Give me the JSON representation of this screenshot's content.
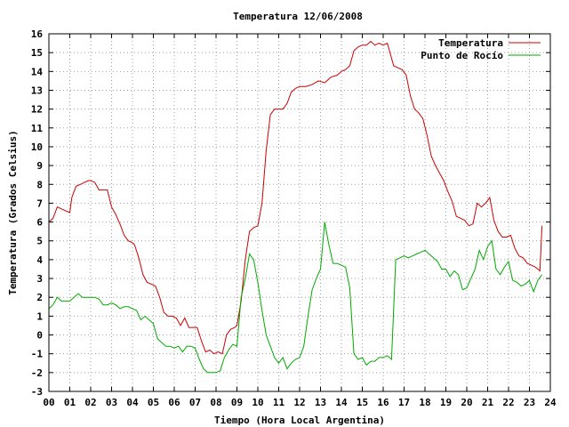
{
  "chart_data": {
    "type": "line",
    "title": "Temperatura 12/06/2008",
    "xlabel": "Tiempo (Hora Local Argentina)",
    "ylabel": "Temperatura (Grados Celsius)",
    "xlim": [
      0,
      24
    ],
    "ylim": [
      -3,
      16
    ],
    "x_ticks": [
      "00",
      "01",
      "02",
      "03",
      "04",
      "05",
      "06",
      "07",
      "08",
      "09",
      "10",
      "11",
      "12",
      "13",
      "14",
      "15",
      "16",
      "17",
      "18",
      "19",
      "20",
      "21",
      "22",
      "23",
      "24"
    ],
    "y_ticks": [
      -3,
      -2,
      -1,
      0,
      1,
      2,
      3,
      4,
      5,
      6,
      7,
      8,
      9,
      10,
      11,
      12,
      13,
      14,
      15,
      16
    ],
    "grid": true,
    "legend_position": "top-right",
    "series": [
      {
        "name": "Temperatura",
        "color": "#cc0000",
        "x": [
          0,
          0.2,
          0.4,
          0.6,
          0.8,
          1.0,
          1.1,
          1.3,
          1.5,
          1.7,
          1.9,
          2.0,
          2.2,
          2.4,
          2.6,
          2.8,
          3.0,
          3.2,
          3.4,
          3.6,
          3.8,
          4.0,
          4.1,
          4.3,
          4.5,
          4.7,
          4.9,
          5.1,
          5.3,
          5.5,
          5.7,
          5.9,
          6.1,
          6.3,
          6.5,
          6.7,
          6.9,
          7.1,
          7.3,
          7.5,
          7.7,
          7.9,
          8.1,
          8.3,
          8.5,
          8.7,
          8.9,
          9.0,
          9.2,
          9.4,
          9.6,
          9.8,
          10.0,
          10.2,
          10.4,
          10.6,
          10.8,
          11.0,
          11.2,
          11.4,
          11.6,
          11.8,
          12.0,
          12.3,
          12.6,
          12.9,
          13.2,
          13.5,
          13.8,
          14.0,
          14.2,
          14.4,
          14.6,
          14.8,
          15.0,
          15.2,
          15.4,
          15.6,
          15.8,
          16.0,
          16.2,
          16.5,
          16.7,
          16.9,
          17.1,
          17.3,
          17.5,
          17.7,
          17.9,
          18.1,
          18.3,
          18.5,
          18.7,
          18.9,
          19.1,
          19.3,
          19.5,
          19.7,
          19.9,
          20.1,
          20.3,
          20.5,
          20.7,
          20.9,
          21.1,
          21.3,
          21.5,
          21.7,
          21.9,
          22.1,
          22.3,
          22.5,
          22.7,
          22.9,
          23.1,
          23.3,
          23.5,
          23.6
        ],
        "y": [
          6.0,
          6.2,
          6.8,
          6.7,
          6.6,
          6.5,
          7.3,
          7.9,
          8.0,
          8.1,
          8.2,
          8.2,
          8.1,
          7.7,
          7.7,
          7.7,
          6.8,
          6.4,
          5.9,
          5.3,
          5.0,
          4.9,
          4.8,
          4.1,
          3.2,
          2.8,
          2.7,
          2.6,
          2.0,
          1.2,
          1.0,
          1.0,
          0.9,
          0.5,
          0.9,
          0.4,
          0.4,
          0.4,
          -0.3,
          -0.9,
          -0.8,
          -1.0,
          -0.9,
          -1.0,
          0.0,
          0.3,
          0.4,
          0.5,
          1.8,
          4.0,
          5.5,
          5.7,
          5.8,
          7.0,
          9.8,
          11.7,
          12.0,
          12.0,
          12.0,
          12.3,
          12.9,
          13.1,
          13.2,
          13.2,
          13.3,
          13.5,
          13.4,
          13.7,
          13.8,
          14.0,
          14.1,
          14.3,
          15.1,
          15.3,
          15.4,
          15.4,
          15.6,
          15.4,
          15.5,
          15.4,
          15.5,
          14.3,
          14.2,
          14.1,
          13.8,
          12.7,
          12.0,
          11.8,
          11.5,
          10.6,
          9.5,
          9.0,
          8.6,
          8.2,
          7.6,
          7.1,
          6.3,
          6.2,
          6.1,
          5.8,
          5.9,
          7.0,
          6.8,
          7.0,
          7.3,
          6.1,
          5.5,
          5.2,
          5.2,
          5.3,
          4.6,
          4.2,
          4.1,
          3.8,
          3.7,
          3.6,
          3.4,
          5.8
        ]
      },
      {
        "name": "Punto de Rocío",
        "color": "#00aa00",
        "x": [
          0,
          0.2,
          0.4,
          0.6,
          0.8,
          1.0,
          1.2,
          1.4,
          1.6,
          1.8,
          2.0,
          2.2,
          2.4,
          2.6,
          2.8,
          3.0,
          3.2,
          3.4,
          3.6,
          3.8,
          4.0,
          4.2,
          4.4,
          4.6,
          4.8,
          5.0,
          5.2,
          5.4,
          5.6,
          5.8,
          6.0,
          6.2,
          6.4,
          6.6,
          6.8,
          7.0,
          7.2,
          7.4,
          7.6,
          7.8,
          8.0,
          8.2,
          8.4,
          8.6,
          8.8,
          9.0,
          9.2,
          9.4,
          9.6,
          9.8,
          10.0,
          10.2,
          10.4,
          10.6,
          10.8,
          11.0,
          11.2,
          11.4,
          11.6,
          11.8,
          12.0,
          12.2,
          12.4,
          12.6,
          12.8,
          13.0,
          13.2,
          13.4,
          13.6,
          13.8,
          14.0,
          14.2,
          14.4,
          14.6,
          14.8,
          15.0,
          15.2,
          15.4,
          15.6,
          15.8,
          16.0,
          16.2,
          16.4,
          16.6,
          16.8,
          17.0,
          17.2,
          17.4,
          17.6,
          17.8,
          18.0,
          18.2,
          18.4,
          18.6,
          18.8,
          19.0,
          19.2,
          19.4,
          19.6,
          19.8,
          20.0,
          20.2,
          20.4,
          20.6,
          20.8,
          21.0,
          21.2,
          21.4,
          21.6,
          21.8,
          22.0,
          22.2,
          22.4,
          22.6,
          22.8,
          23.0,
          23.2,
          23.4,
          23.6
        ],
        "y": [
          1.4,
          1.6,
          2.0,
          1.8,
          1.8,
          1.8,
          2.0,
          2.2,
          2.0,
          2.0,
          2.0,
          2.0,
          1.9,
          1.6,
          1.6,
          1.7,
          1.6,
          1.4,
          1.5,
          1.5,
          1.4,
          1.3,
          0.8,
          1.0,
          0.8,
          0.6,
          -0.2,
          -0.4,
          -0.6,
          -0.6,
          -0.7,
          -0.6,
          -0.9,
          -0.6,
          -0.6,
          -0.7,
          -1.3,
          -1.8,
          -2.0,
          -2.0,
          -2.0,
          -1.9,
          -1.2,
          -0.8,
          -0.5,
          -0.6,
          2.0,
          3.0,
          4.3,
          4.0,
          2.8,
          1.3,
          0.0,
          -0.6,
          -1.2,
          -1.5,
          -1.2,
          -1.8,
          -1.5,
          -1.3,
          -1.2,
          -0.6,
          1.0,
          2.4,
          3.0,
          3.5,
          6.0,
          4.8,
          3.8,
          3.8,
          3.7,
          3.6,
          2.5,
          -1.0,
          -1.3,
          -1.2,
          -1.6,
          -1.4,
          -1.4,
          -1.2,
          -1.2,
          -1.1,
          -1.3,
          4.0,
          4.1,
          4.2,
          4.1,
          4.2,
          4.3,
          4.4,
          4.5,
          4.3,
          4.1,
          3.9,
          3.5,
          3.5,
          3.1,
          3.4,
          3.2,
          2.4,
          2.5,
          3.0,
          3.5,
          4.5,
          4.0,
          4.7,
          5.0,
          3.5,
          3.2,
          3.6,
          3.9,
          2.9,
          2.8,
          2.6,
          2.7,
          2.9,
          2.3,
          2.9,
          3.2
        ]
      }
    ]
  }
}
